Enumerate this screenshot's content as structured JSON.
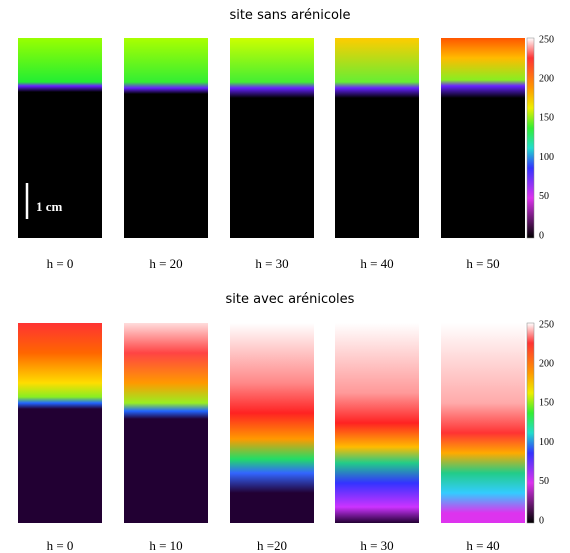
{
  "panels": [
    {
      "title": "site sans arénicole",
      "images": [
        {
          "label": "h = 0"
        },
        {
          "label": "h = 20"
        },
        {
          "label": "h = 30"
        },
        {
          "label": "h = 40"
        },
        {
          "label": "h = 50"
        }
      ],
      "colorbar_ticks": [
        250,
        200,
        150,
        100,
        50,
        0
      ]
    },
    {
      "title": "site avec arénicoles",
      "images": [
        {
          "label": "h = 0"
        },
        {
          "label": "h = 10"
        },
        {
          "label": "h =20"
        },
        {
          "label": "h = 30"
        },
        {
          "label": "h = 40"
        }
      ],
      "colorbar_ticks": [
        250,
        200,
        150,
        100,
        50,
        0
      ]
    }
  ],
  "scale_bar": "1 cm"
}
